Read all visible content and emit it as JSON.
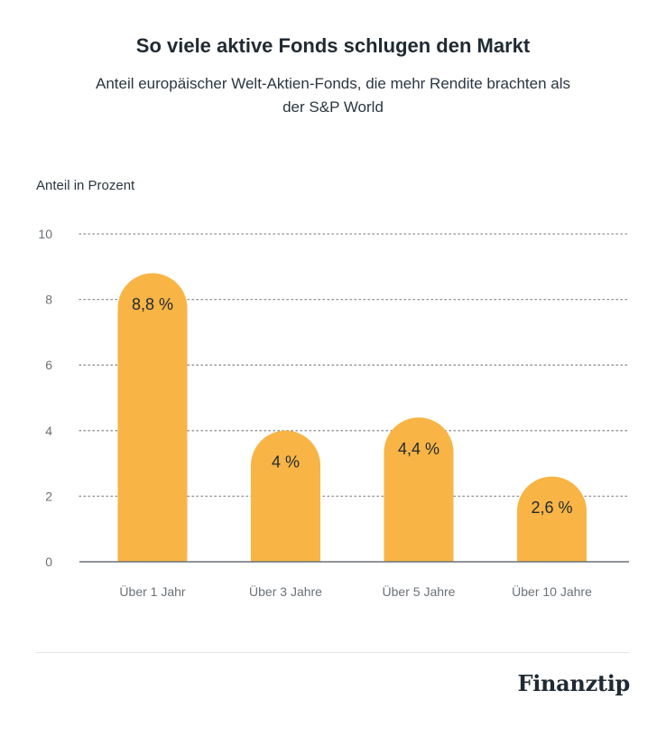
{
  "header": {
    "title": "So viele aktive Fonds schlugen den Markt",
    "subtitle": "Anteil europäischer Welt-Aktien-Fonds, die mehr Rendite brachten als der S&P World"
  },
  "brand": {
    "logo_text": "Finanztip"
  },
  "colors": {
    "bar": "#f8b445",
    "grid": "#8a8f94",
    "axis": "#6b7177",
    "text": "#1f2a33",
    "tick": "#6b7177"
  },
  "chart_data": {
    "type": "bar",
    "title": "So viele aktive Fonds schlugen den Markt",
    "subtitle": "Anteil europäischer Welt-Aktien-Fonds, die mehr Rendite brachten als der S&P World",
    "ylabel": "Anteil in Prozent",
    "xlabel": "",
    "categories": [
      "Über 1 Jahr",
      "Über 3 Jahre",
      "Über 5 Jahre",
      "Über 10 Jahre"
    ],
    "values": [
      8.8,
      4,
      4.4,
      2.6
    ],
    "data_labels": [
      "8,8 %",
      "4 %",
      "4,4 %",
      "2,6 %"
    ],
    "ylim": [
      0,
      10
    ],
    "yticks": [
      0,
      2,
      4,
      6,
      8,
      10
    ],
    "grid": true,
    "legend": "none"
  }
}
